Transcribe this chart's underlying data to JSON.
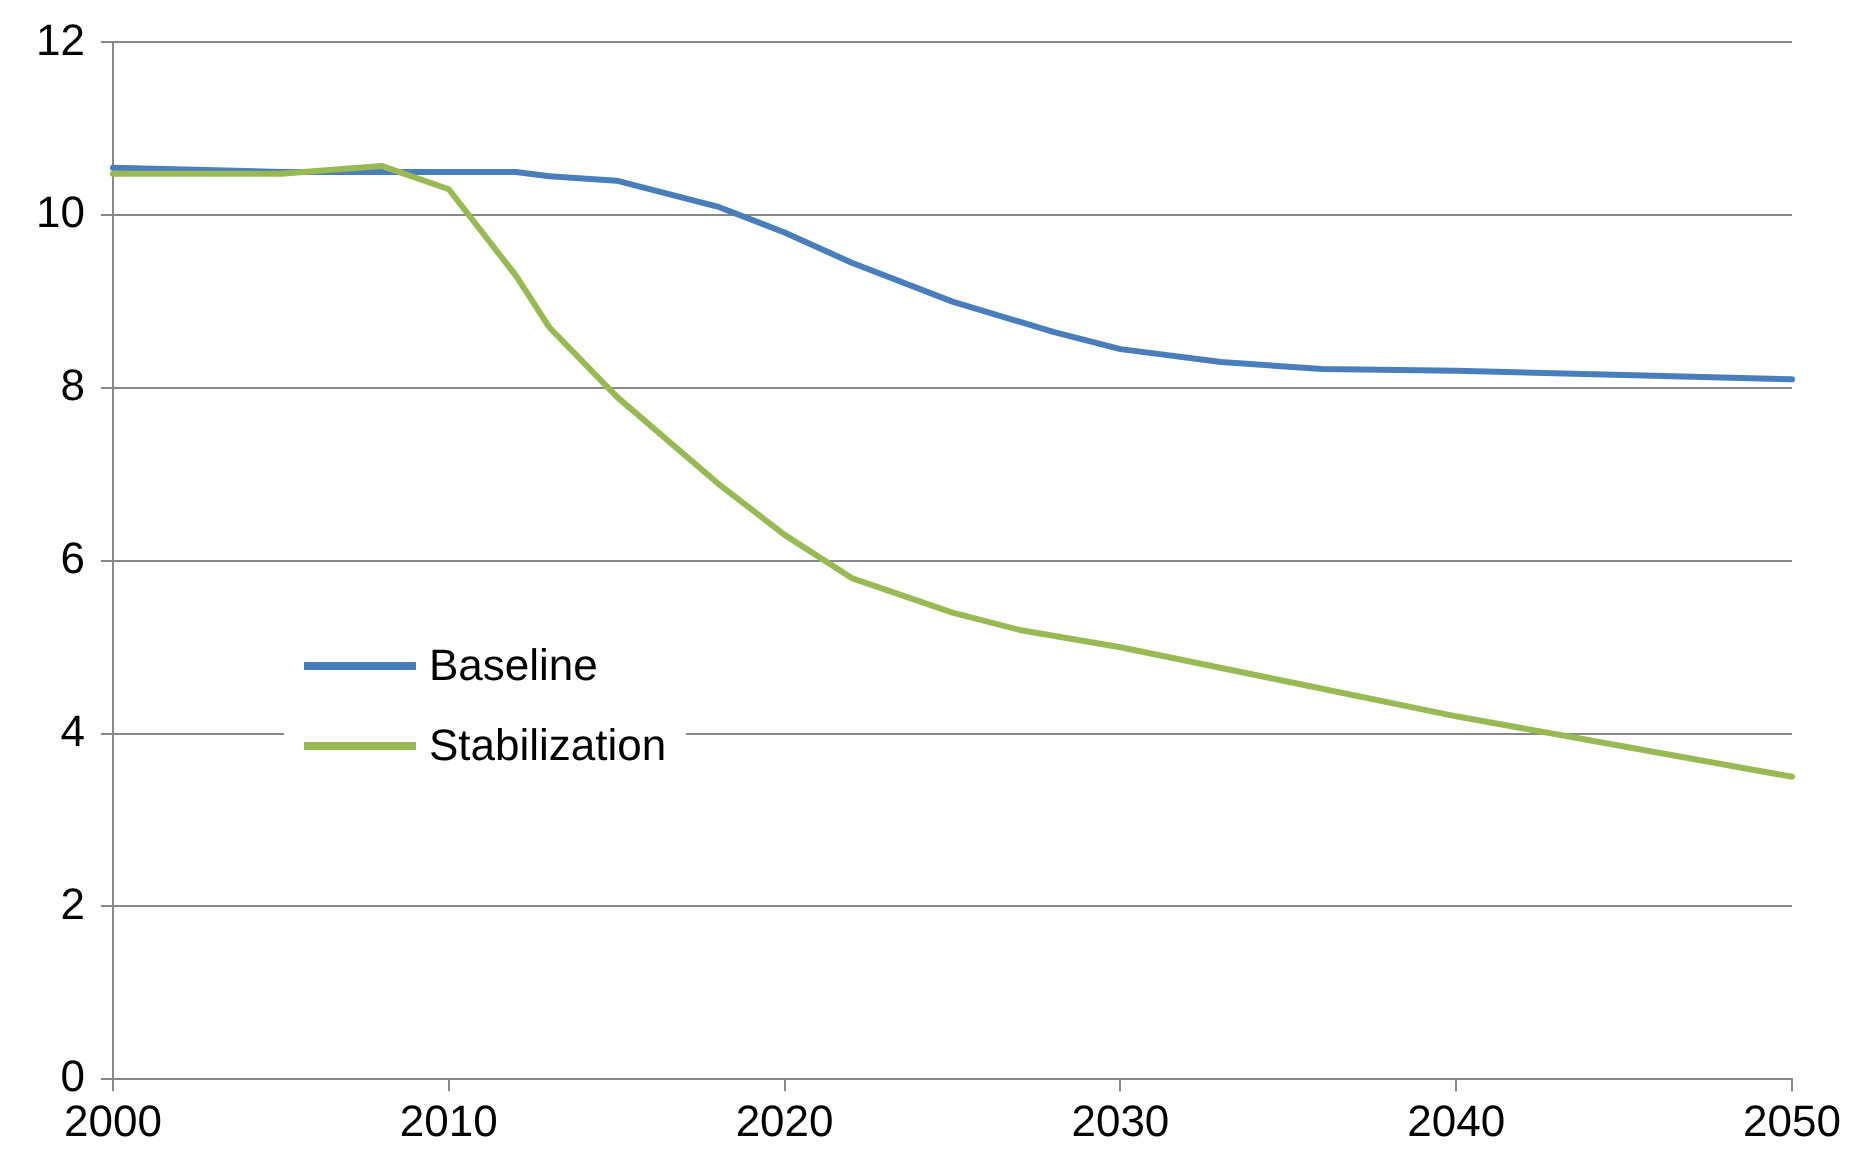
{
  "chart_data": {
    "type": "line",
    "x": [
      2000,
      2005,
      2008,
      2010,
      2012,
      2013,
      2015,
      2018,
      2020,
      2022,
      2025,
      2027,
      2028,
      2030,
      2033,
      2035,
      2036,
      2040,
      2045,
      2050
    ],
    "series": [
      {
        "name": "Baseline",
        "color": "#4a7ebb",
        "values": [
          10.55,
          10.5,
          10.5,
          10.5,
          10.5,
          10.45,
          10.4,
          10.1,
          9.8,
          9.45,
          9.0,
          null,
          8.65,
          8.45,
          8.3,
          null,
          8.22,
          8.2,
          8.15,
          8.1
        ]
      },
      {
        "name": "Stabilization",
        "color": "#98b954",
        "values": [
          10.48,
          10.48,
          10.57,
          10.3,
          9.3,
          8.7,
          7.9,
          6.9,
          6.3,
          5.8,
          5.4,
          5.2,
          null,
          5.0,
          null,
          4.6,
          null,
          4.2,
          3.85,
          3.5
        ]
      }
    ],
    "xlim": [
      2000,
      2050
    ],
    "xticks": [
      2000,
      2010,
      2020,
      2030,
      2040,
      2050
    ],
    "ylim": [
      0,
      12
    ],
    "yticks": [
      0,
      2,
      4,
      6,
      8,
      10,
      12
    ],
    "grid": "y",
    "legend": "left",
    "marker": "none",
    "line_style": "solid"
  }
}
